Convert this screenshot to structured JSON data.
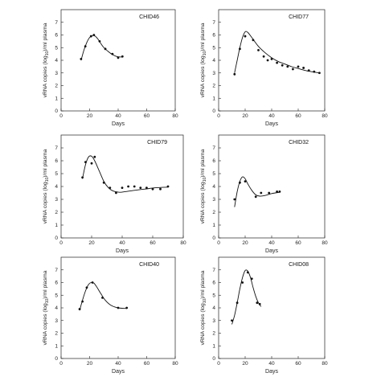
{
  "figure": {
    "ylabel_text": "vRNA copies (log",
    "ylabel_sub": "10",
    "ylabel_tail": ")/ml plasma",
    "xlabel_text": "Days"
  },
  "chart_data": [
    {
      "type": "scatter",
      "title": "CHID46",
      "xlabel": "Days",
      "ylabel": "vRNA copies (log10)/ml plasma",
      "xlim": [
        0,
        80
      ],
      "ylim": [
        0,
        8
      ],
      "xticks": [
        0,
        20,
        40,
        60,
        80
      ],
      "yticks": [
        0,
        1,
        2,
        3,
        4,
        5,
        6,
        7
      ],
      "points": [
        [
          14,
          4.1
        ],
        [
          17,
          5.1
        ],
        [
          21,
          5.9
        ],
        [
          23,
          6.0
        ],
        [
          27,
          5.5
        ],
        [
          31,
          4.9
        ],
        [
          36,
          4.5
        ],
        [
          40,
          4.2
        ],
        [
          43,
          4.3
        ]
      ],
      "fit_curve": [
        [
          14,
          4.0
        ],
        [
          16,
          4.8
        ],
        [
          18,
          5.4
        ],
        [
          20,
          5.8
        ],
        [
          22,
          5.95
        ],
        [
          24,
          5.9
        ],
        [
          26,
          5.65
        ],
        [
          28,
          5.3
        ],
        [
          30,
          5.0
        ],
        [
          33,
          4.7
        ],
        [
          36,
          4.45
        ],
        [
          39,
          4.3
        ],
        [
          43,
          4.25
        ]
      ]
    },
    {
      "type": "scatter",
      "title": "CHID77",
      "xlabel": "Days",
      "ylabel": "vRNA copies (log10)/ml plasma",
      "xlim": [
        0,
        80
      ],
      "ylim": [
        0,
        8
      ],
      "xticks": [
        0,
        20,
        40,
        60,
        80
      ],
      "yticks": [
        0,
        1,
        2,
        3,
        4,
        5,
        6,
        7
      ],
      "points": [
        [
          12,
          2.9
        ],
        [
          16,
          4.9
        ],
        [
          20,
          5.9
        ],
        [
          26,
          5.6
        ],
        [
          30,
          4.8
        ],
        [
          34,
          4.3
        ],
        [
          37,
          4.0
        ],
        [
          40,
          4.1
        ],
        [
          44,
          3.8
        ],
        [
          48,
          3.6
        ],
        [
          52,
          3.5
        ],
        [
          56,
          3.3
        ],
        [
          60,
          3.5
        ],
        [
          64,
          3.4
        ],
        [
          68,
          3.2
        ],
        [
          72,
          3.1
        ],
        [
          76,
          3.0
        ]
      ],
      "fit_curve": [
        [
          12,
          3.0
        ],
        [
          14,
          4.0
        ],
        [
          16,
          5.0
        ],
        [
          18,
          5.8
        ],
        [
          20,
          6.25
        ],
        [
          22,
          6.2
        ],
        [
          25,
          5.8
        ],
        [
          30,
          5.1
        ],
        [
          35,
          4.6
        ],
        [
          40,
          4.2
        ],
        [
          45,
          3.9
        ],
        [
          50,
          3.7
        ],
        [
          55,
          3.5
        ],
        [
          60,
          3.35
        ],
        [
          65,
          3.2
        ],
        [
          70,
          3.1
        ],
        [
          76,
          3.0
        ]
      ]
    },
    {
      "type": "scatter",
      "title": "CHID79",
      "xlabel": "Days",
      "ylabel": "vRNA copies (log10)/ml plasma",
      "xlim": [
        0,
        80
      ],
      "ylim": [
        0,
        8
      ],
      "xticks": [
        0,
        20,
        40,
        60,
        80
      ],
      "yticks": [
        0,
        1,
        2,
        3,
        4,
        5,
        6,
        7
      ],
      "points": [
        [
          14,
          4.7
        ],
        [
          16,
          5.9
        ],
        [
          20,
          5.8
        ],
        [
          22,
          6.3
        ],
        [
          28,
          4.3
        ],
        [
          32,
          3.9
        ],
        [
          36,
          3.5
        ],
        [
          40,
          3.9
        ],
        [
          44,
          4.0
        ],
        [
          48,
          4.0
        ],
        [
          52,
          3.9
        ],
        [
          56,
          3.9
        ],
        [
          60,
          3.8
        ],
        [
          65,
          3.8
        ],
        [
          70,
          4.0
        ]
      ],
      "fit_curve": [
        [
          14,
          4.6
        ],
        [
          16,
          5.7
        ],
        [
          18,
          6.3
        ],
        [
          20,
          6.35
        ],
        [
          22,
          6.0
        ],
        [
          25,
          5.2
        ],
        [
          28,
          4.4
        ],
        [
          31,
          3.9
        ],
        [
          34,
          3.65
        ],
        [
          38,
          3.55
        ],
        [
          42,
          3.6
        ],
        [
          48,
          3.7
        ],
        [
          55,
          3.8
        ],
        [
          62,
          3.9
        ],
        [
          70,
          3.95
        ]
      ]
    },
    {
      "type": "scatter",
      "title": "CHID32",
      "xlabel": "Days",
      "ylabel": "vRNA copies (log10)/ml plasma",
      "xlim": [
        0,
        80
      ],
      "ylim": [
        0,
        8
      ],
      "xticks": [
        0,
        20,
        40,
        60,
        80
      ],
      "yticks": [
        0,
        1,
        2,
        3,
        4,
        5,
        6,
        7
      ],
      "points": [
        [
          12,
          3.0
        ],
        [
          16,
          4.3
        ],
        [
          20,
          4.4
        ],
        [
          28,
          3.2
        ],
        [
          32,
          3.5
        ],
        [
          38,
          3.5
        ],
        [
          44,
          3.6
        ],
        [
          46,
          3.6
        ]
      ],
      "fit_curve": [
        [
          12,
          2.4
        ],
        [
          14,
          3.6
        ],
        [
          16,
          4.4
        ],
        [
          18,
          4.75
        ],
        [
          20,
          4.6
        ],
        [
          22,
          4.2
        ],
        [
          25,
          3.7
        ],
        [
          28,
          3.35
        ],
        [
          31,
          3.25
        ],
        [
          35,
          3.3
        ],
        [
          40,
          3.45
        ],
        [
          46,
          3.55
        ]
      ]
    },
    {
      "type": "scatter",
      "title": "CHID40",
      "xlabel": "Days",
      "ylabel": "vRNA copies (log10)/ml plasma",
      "xlim": [
        0,
        80
      ],
      "ylim": [
        0,
        8
      ],
      "xticks": [
        0,
        20,
        40,
        60,
        80
      ],
      "yticks": [
        0,
        1,
        2,
        3,
        4,
        5,
        6,
        7
      ],
      "points": [
        [
          13,
          3.9
        ],
        [
          15,
          4.5
        ],
        [
          18,
          5.6
        ],
        [
          22,
          6.0
        ],
        [
          29,
          4.8
        ],
        [
          40,
          4.0
        ],
        [
          46,
          4.0
        ]
      ],
      "fit_curve": [
        [
          13,
          3.8
        ],
        [
          15,
          4.6
        ],
        [
          17,
          5.3
        ],
        [
          19,
          5.8
        ],
        [
          21,
          6.0
        ],
        [
          23,
          5.95
        ],
        [
          25,
          5.65
        ],
        [
          28,
          5.1
        ],
        [
          31,
          4.6
        ],
        [
          35,
          4.2
        ],
        [
          40,
          4.0
        ],
        [
          46,
          3.95
        ]
      ]
    },
    {
      "type": "scatter",
      "title": "CHID08",
      "xlabel": "Days",
      "ylabel": "vRNA copies (log10)/ml plasma",
      "xlim": [
        0,
        80
      ],
      "ylim": [
        0,
        8
      ],
      "xticks": [
        0,
        20,
        40,
        60,
        80
      ],
      "yticks": [
        0,
        1,
        2,
        3,
        4,
        5,
        6,
        7
      ],
      "points": [
        [
          10,
          3.0
        ],
        [
          14,
          4.4
        ],
        [
          18,
          6.0
        ],
        [
          22,
          6.8
        ],
        [
          25,
          6.3
        ],
        [
          29,
          4.4
        ],
        [
          31,
          4.3
        ]
      ],
      "fit_curve": [
        [
          10,
          2.7
        ],
        [
          12,
          3.4
        ],
        [
          14,
          4.4
        ],
        [
          16,
          5.5
        ],
        [
          18,
          6.4
        ],
        [
          20,
          6.95
        ],
        [
          22,
          6.9
        ],
        [
          24,
          6.4
        ],
        [
          26,
          5.6
        ],
        [
          28,
          4.9
        ],
        [
          30,
          4.4
        ],
        [
          32,
          4.1
        ]
      ]
    }
  ]
}
